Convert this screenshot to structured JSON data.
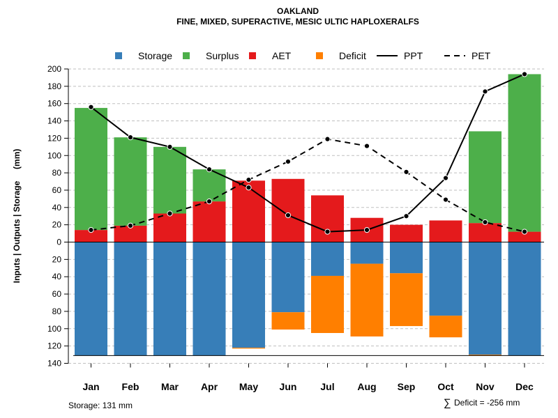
{
  "chart_data": {
    "type": "bar",
    "title": "OAKLAND",
    "subtitle": "FINE, MIXED, SUPERACTIVE, MESIC ULTIC HAPLOXERALFS",
    "ylabel": "Inputs | Outputs | Storage     (mm)",
    "ylim": [
      -140,
      200
    ],
    "y_ticks": [
      200,
      180,
      160,
      140,
      120,
      100,
      80,
      60,
      40,
      20,
      0,
      -20,
      -40,
      -60,
      -80,
      -100,
      -120,
      -140
    ],
    "y_tick_labels": [
      "200",
      "180",
      "160",
      "140",
      "120",
      "100",
      "80",
      "60",
      "40",
      "20",
      "0",
      "20",
      "40",
      "60",
      "80",
      "100",
      "120",
      "140"
    ],
    "categories": [
      "Jan",
      "Feb",
      "Mar",
      "Apr",
      "May",
      "Jun",
      "Jul",
      "Aug",
      "Sep",
      "Oct",
      "Nov",
      "Dec"
    ],
    "legend": [
      {
        "label": "Storage",
        "kind": "box",
        "color": "#377EB8"
      },
      {
        "label": "Surplus",
        "kind": "box",
        "color": "#4DAF4A"
      },
      {
        "label": "AET",
        "kind": "box",
        "color": "#E41A1C"
      },
      {
        "label": "Deficit",
        "kind": "box",
        "color": "#FF7F00"
      },
      {
        "label": "PPT",
        "kind": "solid",
        "color": "#000000"
      },
      {
        "label": "PET",
        "kind": "dashed",
        "color": "#000000"
      }
    ],
    "series": [
      {
        "name": "AET",
        "color": "#E41A1C",
        "values": [
          14,
          19,
          33,
          47,
          71,
          73,
          54,
          28,
          20,
          25,
          22,
          12
        ]
      },
      {
        "name": "Surplus",
        "color": "#4DAF4A",
        "values": [
          141,
          102,
          77,
          37,
          0,
          0,
          0,
          0,
          0,
          0,
          106,
          182
        ]
      },
      {
        "name": "Storage",
        "color": "#377EB8",
        "values": [
          131,
          131,
          131,
          131,
          122,
          81,
          39,
          25,
          36,
          85,
          130,
          131
        ]
      },
      {
        "name": "Deficit",
        "color": "#FF7F00",
        "values": [
          0,
          0,
          0,
          0,
          1,
          20,
          66,
          84,
          61,
          25,
          1,
          0
        ]
      },
      {
        "name": "PPT",
        "color": "#000000",
        "values": [
          156,
          121,
          110,
          84,
          63,
          31,
          12,
          14,
          30,
          74,
          174,
          194
        ]
      },
      {
        "name": "PET",
        "color": "#000000",
        "values": [
          14,
          19,
          33,
          47,
          72,
          93,
          119,
          111,
          81,
          49,
          23,
          12
        ]
      }
    ],
    "storage_capacity": 131,
    "storage_note": "Storage: 131 mm",
    "deficit_note_symbol": "∑",
    "deficit_note": "Deficit = -256 mm"
  }
}
